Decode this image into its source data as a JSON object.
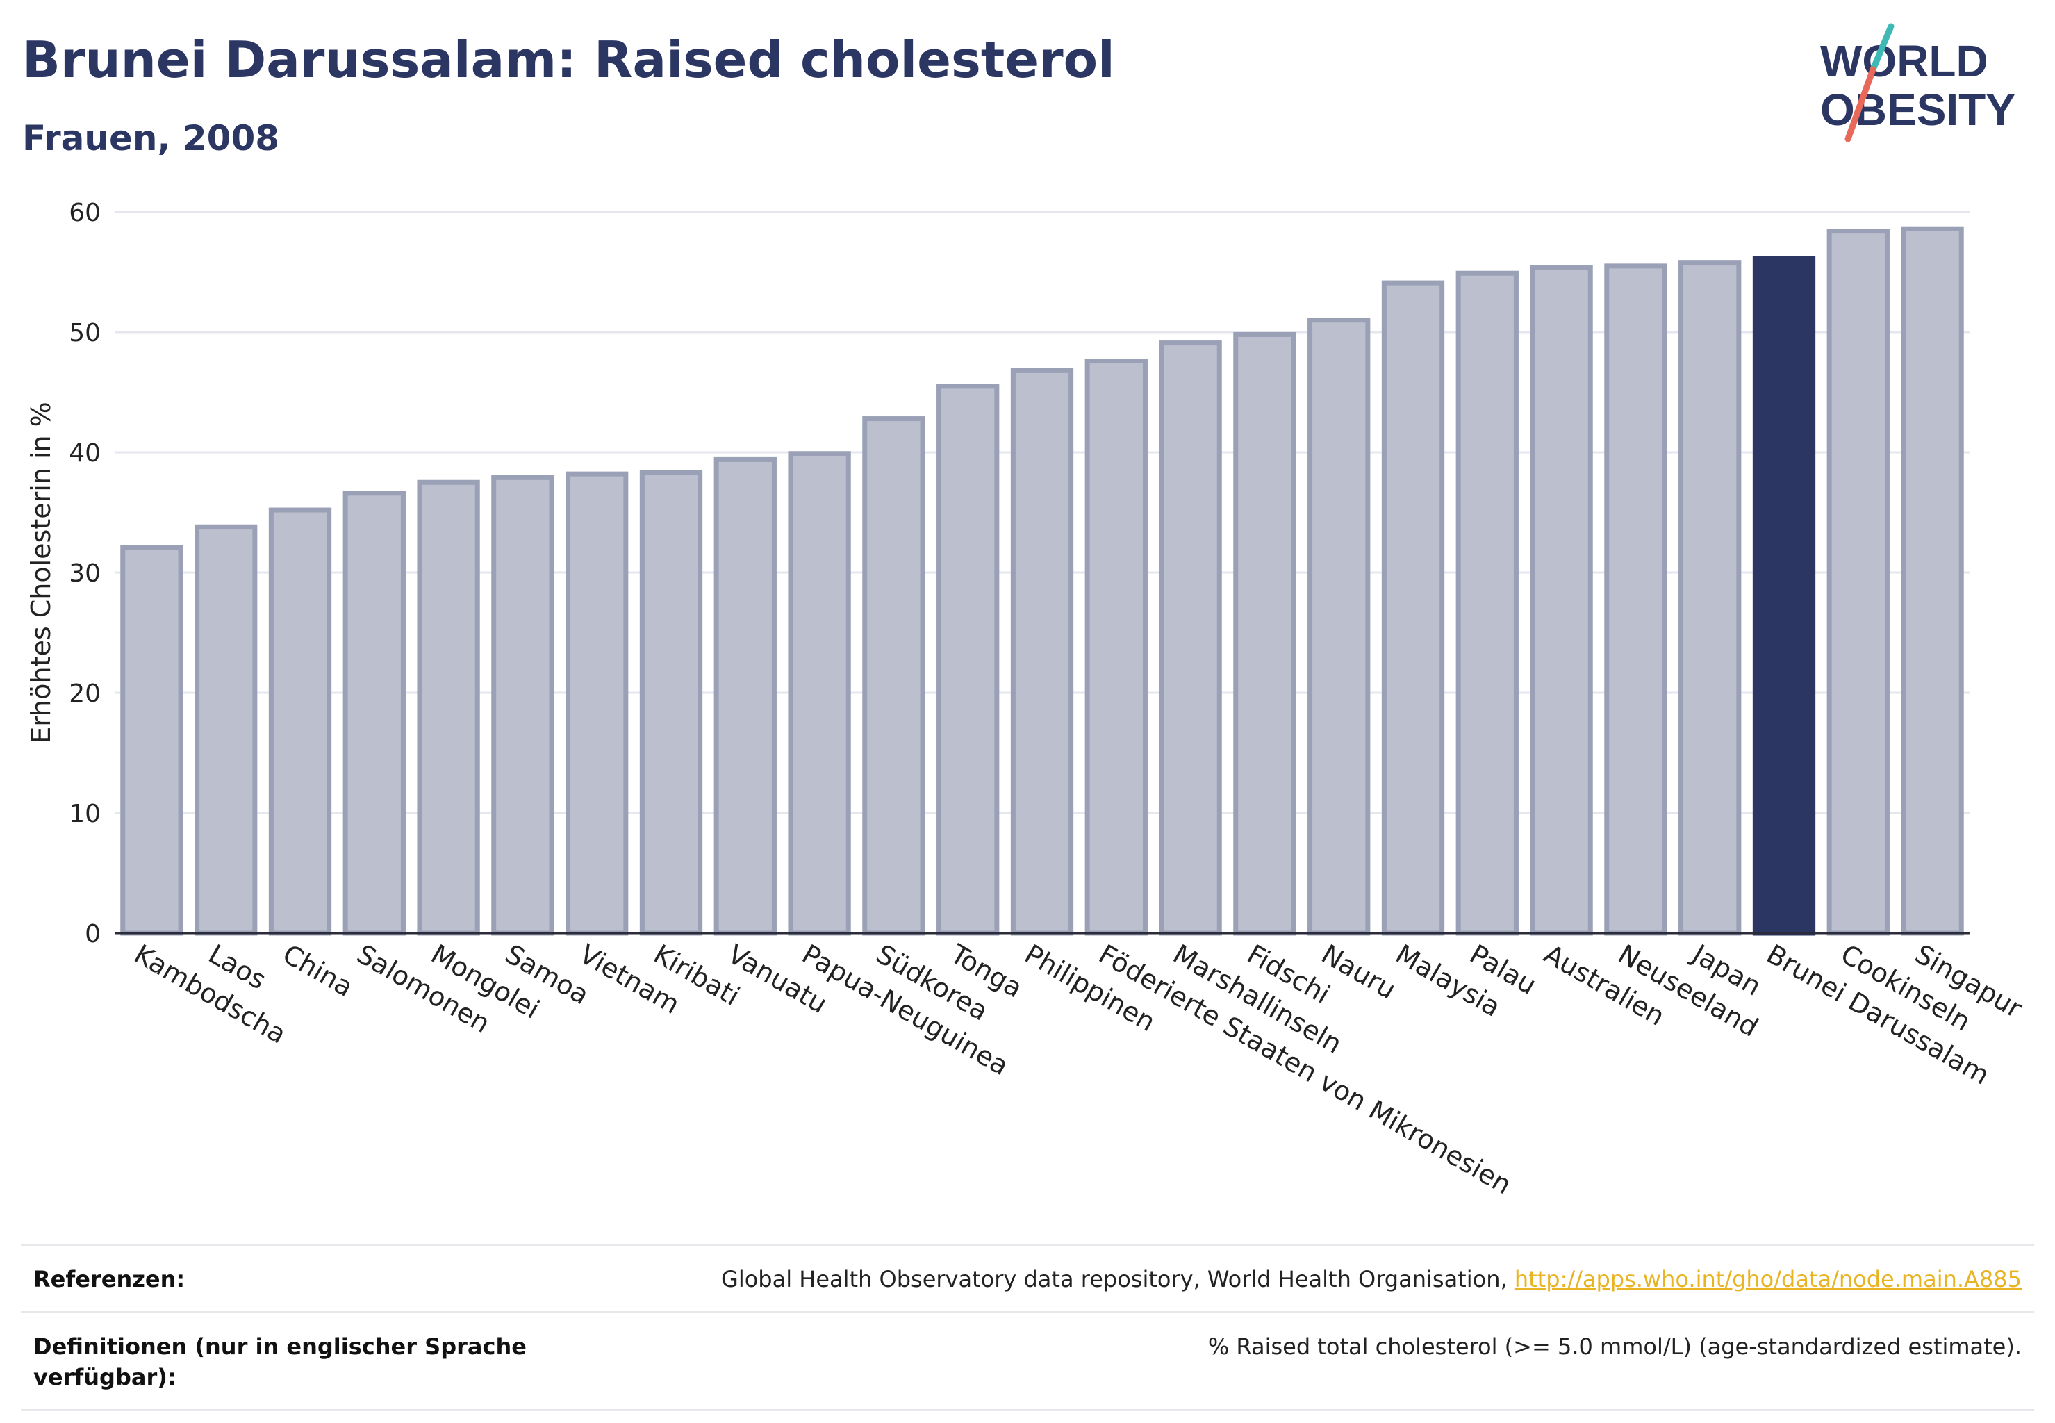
{
  "header": {
    "title": "Brunei Darussalam: Raised cholesterol",
    "subtitle": "Frauen, 2008"
  },
  "logo": {
    "line1": "WORLD",
    "line2": "OBESITY",
    "colors": {
      "text": "#2b3663",
      "accent_teal": "#3fb9b5",
      "accent_coral": "#e8685a"
    }
  },
  "chart_data": {
    "type": "bar",
    "ylabel": "Erhöhtes Cholesterin in %",
    "ylim": [
      0,
      60
    ],
    "yticks": [
      0,
      10,
      20,
      30,
      40,
      50,
      60
    ],
    "grid": true,
    "highlight": "Brunei Darussalam",
    "colors": {
      "bar": "#bcc0ce",
      "bar_stroke": "#9aa0b6",
      "highlight": "#2b3663"
    },
    "categories": [
      "Kambodscha",
      "Laos",
      "China",
      "Salomonen",
      "Mongolei",
      "Samoa",
      "Vietnam",
      "Kiribati",
      "Vanuatu",
      "Papua-Neuguinea",
      "Südkorea",
      "Tonga",
      "Philippinen",
      "Föderierte Staaten von Mikronesien",
      "Marshallinseln",
      "Fidschi",
      "Nauru",
      "Malaysia",
      "Palau",
      "Australien",
      "Neuseeland",
      "Japan",
      "Brunei Darussalam",
      "Cookinseln",
      "Singapur"
    ],
    "values": [
      32.1,
      33.8,
      35.2,
      36.6,
      37.5,
      37.9,
      38.2,
      38.3,
      39.4,
      39.9,
      42.8,
      45.5,
      46.8,
      47.6,
      49.1,
      49.8,
      51.0,
      54.1,
      54.9,
      55.4,
      55.5,
      55.8,
      56.1,
      58.4,
      58.6
    ]
  },
  "references": {
    "refs_label": "Referenzen:",
    "refs_text": "Global Health Observatory data repository, World Health Organisation, ",
    "refs_link": "http://apps.who.int/gho/data/node.main.A885",
    "defs_label": "Definitionen (nur in englischer Sprache verfügbar):",
    "defs_text": "% Raised total cholesterol (>= 5.0 mmol/L) (age-standardized estimate)."
  }
}
